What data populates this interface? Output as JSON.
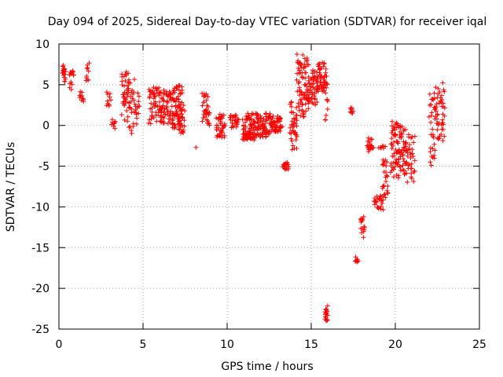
{
  "chart_data": {
    "type": "scatter",
    "title": "Day 094 of 2025, Sidereal Day-to-day VTEC variation (SDTVAR) for receiver iqal",
    "xlabel": "GPS time / hours",
    "ylabel": "SDTVAR / TECUs",
    "xlim": [
      0,
      25
    ],
    "ylim": [
      -25,
      10
    ],
    "xticks": [
      0,
      5,
      10,
      15,
      20,
      25
    ],
    "yticks": [
      -25,
      -20,
      -15,
      -10,
      -5,
      0,
      5,
      10
    ],
    "grid": true,
    "marker": "+",
    "marker_color": "#ff0000",
    "clusters": [
      {
        "x0": 0.2,
        "x1": 0.4,
        "y0": 5.0,
        "y1": 7.4,
        "n": 18
      },
      {
        "x0": 0.6,
        "x1": 0.9,
        "y0": 4.2,
        "y1": 6.8,
        "n": 14
      },
      {
        "x0": 1.2,
        "x1": 1.5,
        "y0": 2.8,
        "y1": 4.2,
        "n": 10
      },
      {
        "x0": 1.6,
        "x1": 1.8,
        "y0": 5.4,
        "y1": 7.8,
        "n": 10
      },
      {
        "x0": 2.8,
        "x1": 3.1,
        "y0": 2.0,
        "y1": 4.2,
        "n": 10
      },
      {
        "x0": 3.1,
        "x1": 3.4,
        "y0": -0.5,
        "y1": 1.0,
        "n": 8
      },
      {
        "x0": 3.7,
        "x1": 4.2,
        "y0": 0.5,
        "y1": 6.6,
        "n": 40
      },
      {
        "x0": 4.1,
        "x1": 4.5,
        "y0": -1.0,
        "y1": 6.0,
        "n": 25
      },
      {
        "x0": 4.5,
        "x1": 4.8,
        "y0": 0.0,
        "y1": 4.0,
        "n": 15
      },
      {
        "x0": 5.3,
        "x1": 6.2,
        "y0": 0.2,
        "y1": 4.8,
        "n": 60
      },
      {
        "x0": 6.0,
        "x1": 6.9,
        "y0": 0.0,
        "y1": 4.6,
        "n": 60
      },
      {
        "x0": 6.7,
        "x1": 7.4,
        "y0": -0.5,
        "y1": 5.0,
        "n": 60
      },
      {
        "x0": 7.0,
        "x1": 7.5,
        "y0": -1.0,
        "y1": 2.5,
        "n": 30
      },
      {
        "x0": 8.1,
        "x1": 8.2,
        "y0": -2.8,
        "y1": -2.6,
        "n": 1
      },
      {
        "x0": 8.5,
        "x1": 9.0,
        "y0": 0.0,
        "y1": 4.0,
        "n": 35
      },
      {
        "x0": 9.3,
        "x1": 9.9,
        "y0": -1.5,
        "y1": 1.5,
        "n": 40
      },
      {
        "x0": 10.1,
        "x1": 10.7,
        "y0": -0.3,
        "y1": 1.3,
        "n": 25
      },
      {
        "x0": 10.9,
        "x1": 11.7,
        "y0": -1.8,
        "y1": 1.5,
        "n": 80
      },
      {
        "x0": 11.6,
        "x1": 12.6,
        "y0": -1.5,
        "y1": 1.5,
        "n": 80
      },
      {
        "x0": 12.5,
        "x1": 13.3,
        "y0": -0.8,
        "y1": 1.2,
        "n": 50
      },
      {
        "x0": 13.3,
        "x1": 13.7,
        "y0": -5.5,
        "y1": -4.5,
        "n": 20
      },
      {
        "x0": 13.7,
        "x1": 14.2,
        "y0": -3.0,
        "y1": 3.0,
        "n": 40
      },
      {
        "x0": 14.1,
        "x1": 14.9,
        "y0": 1.0,
        "y1": 8.8,
        "n": 80
      },
      {
        "x0": 14.8,
        "x1": 15.4,
        "y0": 2.5,
        "y1": 7.2,
        "n": 50
      },
      {
        "x0": 15.3,
        "x1": 15.9,
        "y0": 4.0,
        "y1": 7.8,
        "n": 50
      },
      {
        "x0": 15.8,
        "x1": 16.0,
        "y0": 0.5,
        "y1": 6.5,
        "n": 15
      },
      {
        "x0": 15.8,
        "x1": 16.0,
        "y0": -24.0,
        "y1": -22.0,
        "n": 18
      },
      {
        "x0": 17.3,
        "x1": 17.5,
        "y0": 1.5,
        "y1": 2.2,
        "n": 8
      },
      {
        "x0": 17.6,
        "x1": 17.8,
        "y0": -16.8,
        "y1": -15.8,
        "n": 8
      },
      {
        "x0": 17.9,
        "x1": 18.2,
        "y0": -14.0,
        "y1": -11.0,
        "n": 15
      },
      {
        "x0": 18.3,
        "x1": 18.7,
        "y0": -3.5,
        "y1": -1.5,
        "n": 20
      },
      {
        "x0": 18.7,
        "x1": 19.3,
        "y0": -10.5,
        "y1": -8.5,
        "n": 25
      },
      {
        "x0": 19.0,
        "x1": 19.4,
        "y0": -3.2,
        "y1": -2.5,
        "n": 8
      },
      {
        "x0": 19.2,
        "x1": 19.6,
        "y0": -9.0,
        "y1": -4.0,
        "n": 25
      },
      {
        "x0": 19.7,
        "x1": 20.3,
        "y0": -6.5,
        "y1": 0.7,
        "n": 60
      },
      {
        "x0": 20.2,
        "x1": 20.7,
        "y0": -6.0,
        "y1": 0.0,
        "n": 45
      },
      {
        "x0": 20.6,
        "x1": 21.2,
        "y0": -7.0,
        "y1": -1.0,
        "n": 35
      },
      {
        "x0": 22.0,
        "x1": 22.4,
        "y0": -5.0,
        "y1": 4.0,
        "n": 30
      },
      {
        "x0": 22.3,
        "x1": 23.0,
        "y0": -2.0,
        "y1": 5.4,
        "n": 50
      }
    ]
  }
}
